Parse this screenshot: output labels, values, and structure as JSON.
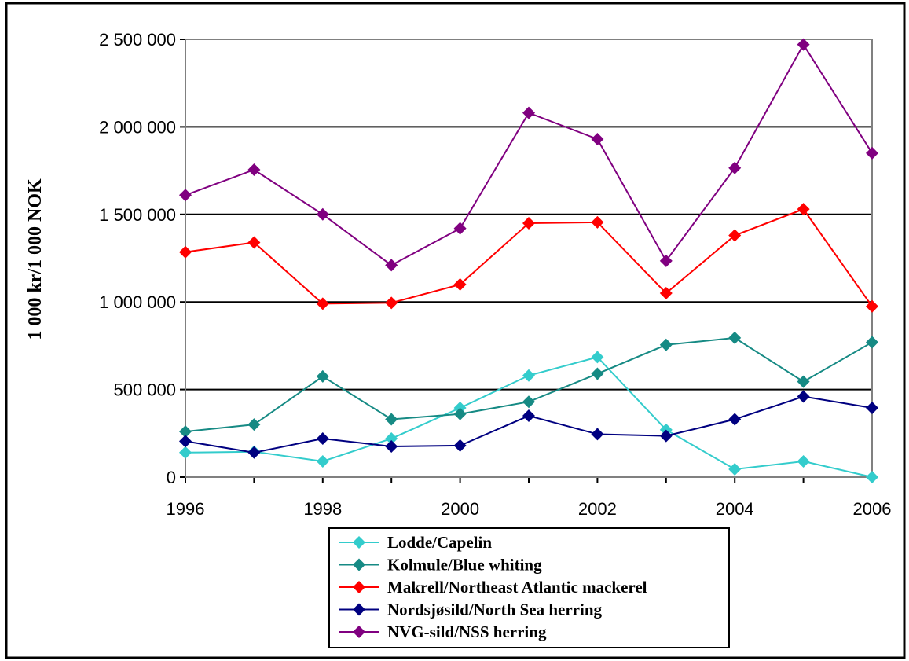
{
  "chart_data": {
    "type": "line",
    "title": "",
    "xlabel": "",
    "ylabel": "1 000 kr/1 000 NOK",
    "x": [
      1996,
      1997,
      1998,
      1999,
      2000,
      2001,
      2002,
      2003,
      2004,
      2005,
      2006
    ],
    "xlim": [
      1996,
      2006
    ],
    "ylim": [
      0,
      2500000
    ],
    "x_tick_labels": [
      "1996",
      "1998",
      "2000",
      "2002",
      "2004",
      "2006"
    ],
    "y_tick_labels": [
      "0",
      "500 000",
      "1 000 000",
      "1 500 000",
      "2 000 000",
      "2 500 000"
    ],
    "grid": "horizontal",
    "legend_position": "bottom",
    "series": [
      {
        "name": "Lodde/Capelin",
        "color": "#33CCCC",
        "marker": "diamond",
        "values": [
          140000,
          145000,
          90000,
          220000,
          395000,
          580000,
          685000,
          270000,
          45000,
          90000,
          0
        ]
      },
      {
        "name": "Kolmule/Blue whiting",
        "color": "#168A84",
        "marker": "diamond",
        "values": [
          260000,
          300000,
          575000,
          330000,
          360000,
          430000,
          590000,
          755000,
          795000,
          545000,
          770000
        ]
      },
      {
        "name": "Makrell/Northeast Atlantic mackerel",
        "color": "#FF0000",
        "marker": "diamond",
        "values": [
          1285000,
          1340000,
          990000,
          995000,
          1100000,
          1450000,
          1455000,
          1050000,
          1380000,
          1530000,
          975000
        ]
      },
      {
        "name": "Nordsjøsild/North Sea herring",
        "color": "#000080",
        "marker": "diamond",
        "values": [
          205000,
          140000,
          220000,
          175000,
          180000,
          350000,
          245000,
          235000,
          330000,
          460000,
          395000
        ]
      },
      {
        "name": "NVG-sild/NSS herring",
        "color": "#800080",
        "marker": "diamond",
        "values": [
          1610000,
          1755000,
          1500000,
          1210000,
          1420000,
          2080000,
          1930000,
          1235000,
          1765000,
          2470000,
          1850000
        ]
      }
    ]
  }
}
